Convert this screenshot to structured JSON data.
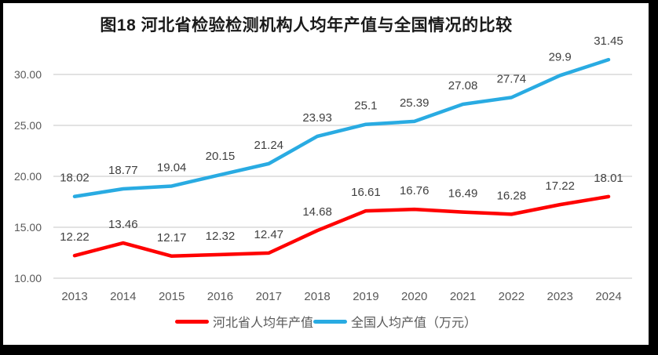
{
  "window": {
    "border_color": "#000000",
    "background": "#ffffff"
  },
  "chart_data": {
    "type": "line",
    "title": "图18  河北省检验检测机构人均年产值与全国情况的比较",
    "categories": [
      "2013",
      "2014",
      "2015",
      "2016",
      "2017",
      "2018",
      "2019",
      "2020",
      "2021",
      "2022",
      "2023",
      "2024"
    ],
    "series": [
      {
        "name": "河北省人均年产值",
        "color": "#ff0000",
        "values": [
          12.22,
          13.46,
          12.17,
          12.32,
          12.47,
          14.68,
          16.61,
          16.76,
          16.49,
          16.28,
          17.22,
          18.01
        ]
      },
      {
        "name": "全国人均产值（万元）",
        "color": "#29abe2",
        "values": [
          18.02,
          18.77,
          19.04,
          20.15,
          21.24,
          23.93,
          25.1,
          25.39,
          27.08,
          27.74,
          29.9,
          31.45
        ]
      }
    ],
    "y_axis": {
      "ticks": [
        10,
        15,
        20,
        25,
        30
      ],
      "tick_labels": [
        "10.00",
        "15.00",
        "20.00",
        "25.00",
        "30.00"
      ],
      "min": 10,
      "max": 32.5
    },
    "grid": true,
    "data_labels": true,
    "legend_position": "bottom",
    "styles": {
      "grid_color": "#d9d9d9",
      "axis_label_color": "#595959",
      "data_label_color": "#404040",
      "title_color": "#1a1a1a"
    }
  }
}
